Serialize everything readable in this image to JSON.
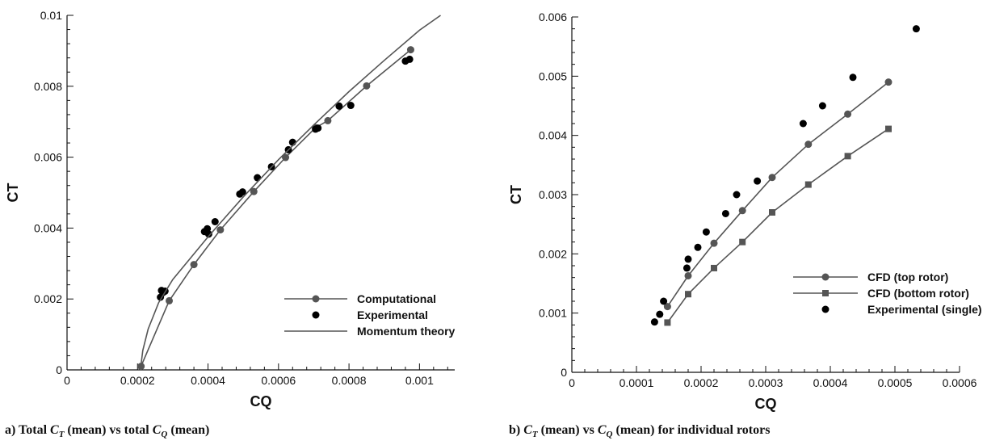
{
  "chart_data": [
    {
      "type": "line",
      "xlabel": "CQ",
      "ylabel": "CT",
      "xlim": [
        0,
        0.0011
      ],
      "ylim": [
        0,
        0.01
      ],
      "xticks": [
        "0",
        "0.0002",
        "0.0004",
        "0.0006",
        "0.0008",
        "0.001"
      ],
      "xtick_values": [
        0,
        0.0002,
        0.0004,
        0.0006,
        0.0008,
        0.001
      ],
      "yticks": [
        "0",
        "0.002",
        "0.004",
        "0.006",
        "0.008",
        "0.01"
      ],
      "ytick_values": [
        0,
        0.002,
        0.004,
        0.006,
        0.008,
        0.01
      ],
      "legend_position": "bottom-right",
      "series": [
        {
          "name": "Computational",
          "style": "line+circle",
          "color": "#555555",
          "x": [
            0.00021,
            0.00029,
            0.00036,
            0.000435,
            0.00053,
            0.00062,
            0.000705,
            0.00074,
            0.00085,
            0.000975
          ],
          "y": [
            0.0001,
            0.00195,
            0.00297,
            0.00395,
            0.00503,
            0.00599,
            0.00683,
            0.00703,
            0.00801,
            0.00903
          ]
        },
        {
          "name": "Experimental",
          "style": "dot",
          "color": "#000000",
          "x": [
            0.000265,
            0.000268,
            0.000272,
            0.000278,
            0.00039,
            0.000398,
            0.000402,
            0.00042,
            0.00049,
            0.000498,
            0.00054,
            0.00058,
            0.000628,
            0.00064,
            0.000705,
            0.000712,
            0.000772,
            0.000805,
            0.00096,
            0.000972
          ],
          "y": [
            0.00205,
            0.00224,
            0.00218,
            0.00222,
            0.0039,
            0.00398,
            0.00383,
            0.00418,
            0.00496,
            0.00502,
            0.00542,
            0.00573,
            0.00621,
            0.00642,
            0.00679,
            0.00682,
            0.00744,
            0.00746,
            0.00871,
            0.00876
          ]
        },
        {
          "name": "Momentum theory",
          "style": "line",
          "color": "#555555",
          "x": [
            0.000208,
            0.000215,
            0.00023,
            0.00026,
            0.0003,
            0.00035,
            0.0004,
            0.0005,
            0.0006,
            0.0007,
            0.0008,
            0.0009,
            0.001,
            0.00106
          ],
          "y": [
            0.0,
            0.00055,
            0.00115,
            0.0019,
            0.00255,
            0.00315,
            0.00375,
            0.00488,
            0.00593,
            0.00691,
            0.00785,
            0.00873,
            0.00958,
            0.01
          ]
        }
      ]
    },
    {
      "type": "line",
      "xlabel": "CQ",
      "ylabel": "CT",
      "xlim": [
        0,
        0.0006
      ],
      "ylim": [
        0,
        0.006
      ],
      "xticks": [
        "0",
        "0.0001",
        "0.0002",
        "0.0003",
        "0.0004",
        "0.0005",
        "0.0006"
      ],
      "xtick_values": [
        0,
        0.0001,
        0.0002,
        0.0003,
        0.0004,
        0.0005,
        0.0006
      ],
      "yticks": [
        "0",
        "0.001",
        "0.002",
        "0.003",
        "0.004",
        "0.005",
        "0.006"
      ],
      "ytick_values": [
        0,
        0.001,
        0.002,
        0.003,
        0.004,
        0.005,
        0.006
      ],
      "legend_position": "bottom-right",
      "series": [
        {
          "name": "CFD (top rotor)",
          "style": "line+circle",
          "color": "#555555",
          "x": [
            0.000148,
            0.00018,
            0.00022,
            0.000264,
            0.00031,
            0.000366,
            0.000427,
            0.00049
          ],
          "y": [
            0.00111,
            0.00163,
            0.00218,
            0.00273,
            0.00329,
            0.00385,
            0.00436,
            0.0049
          ]
        },
        {
          "name": "CFD (bottom rotor)",
          "style": "line+square",
          "color": "#555555",
          "x": [
            0.000148,
            0.00018,
            0.00022,
            0.000264,
            0.00031,
            0.000366,
            0.000427,
            0.00049
          ],
          "y": [
            0.00084,
            0.00132,
            0.00176,
            0.0022,
            0.0027,
            0.00317,
            0.00365,
            0.00411
          ]
        },
        {
          "name": "Experimental (single)",
          "style": "dot",
          "color": "#000000",
          "x": [
            0.000128,
            0.000136,
            0.000142,
            0.000178,
            0.00018,
            0.000195,
            0.000208,
            0.000238,
            0.000255,
            0.000287,
            0.000358,
            0.000388,
            0.000435,
            0.000533
          ],
          "y": [
            0.00085,
            0.00098,
            0.0012,
            0.00176,
            0.00191,
            0.00211,
            0.00237,
            0.00268,
            0.003,
            0.00323,
            0.0042,
            0.0045,
            0.00498,
            0.0058
          ]
        }
      ]
    }
  ],
  "captions": {
    "a_prefix": "a) Total",
    "a_ct_sym": "C",
    "a_ct_sub": "T",
    "a_mid": "(mean) vs total",
    "a_cq_sym": "C",
    "a_cq_sub": "Q",
    "a_suffix": "(mean)",
    "b_prefix": "b)",
    "b_ct_sym": "C",
    "b_ct_sub": "T",
    "b_mid": "(mean) vs",
    "b_cq_sym": "C",
    "b_cq_sub": "Q",
    "b_suffix": "(mean) for individual rotors"
  }
}
